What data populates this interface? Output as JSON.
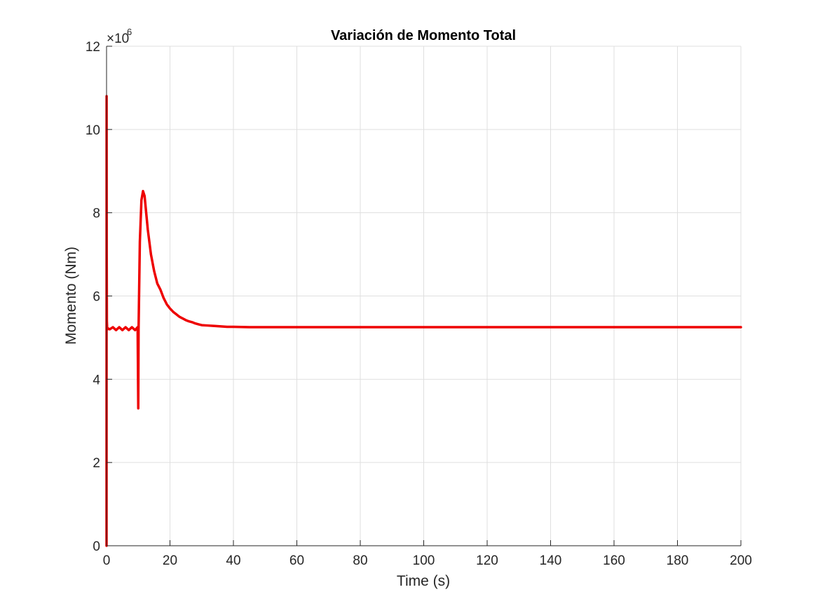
{
  "chart_data": {
    "type": "line",
    "title": "Variación de Momento Total",
    "xlabel": "Time (s)",
    "ylabel": "Momento (Nm)",
    "y_exponent_label": "×10",
    "y_exponent_power": "6",
    "xlim": [
      0,
      200
    ],
    "ylim": [
      0,
      12
    ],
    "x_ticks": [
      0,
      20,
      40,
      60,
      80,
      100,
      120,
      140,
      160,
      180,
      200
    ],
    "y_ticks": [
      0,
      2,
      4,
      6,
      8,
      10,
      12
    ],
    "grid": true,
    "line_color": "#ee0000",
    "series": [
      {
        "x": [
          0,
          0.02,
          0.05,
          0.1,
          0.2,
          0.3,
          0.5,
          1,
          2,
          3,
          4,
          5,
          6,
          7,
          8,
          9,
          9.8,
          10,
          10.1,
          10.5,
          11,
          11.5,
          12,
          12.5,
          13,
          14,
          15,
          16,
          17,
          18,
          19,
          20,
          21,
          22,
          23,
          24,
          25,
          26,
          27,
          28,
          29,
          30,
          32,
          34,
          36,
          38,
          40,
          45,
          50,
          60,
          70,
          80,
          90,
          100,
          120,
          140,
          160,
          180,
          200
        ],
        "y": [
          0,
          10.8,
          7,
          5.4,
          5.2,
          5.2,
          5.22,
          5.2,
          5.25,
          5.18,
          5.25,
          5.18,
          5.25,
          5.18,
          5.25,
          5.18,
          5.25,
          3.3,
          5.2,
          7.3,
          8.3,
          8.52,
          8.4,
          8.0,
          7.6,
          7.0,
          6.6,
          6.3,
          6.15,
          5.95,
          5.8,
          5.7,
          5.62,
          5.56,
          5.5,
          5.46,
          5.42,
          5.39,
          5.37,
          5.34,
          5.32,
          5.3,
          5.29,
          5.28,
          5.27,
          5.26,
          5.26,
          5.25,
          5.25,
          5.25,
          5.25,
          5.25,
          5.25,
          5.25,
          5.25,
          5.25,
          5.25,
          5.25,
          5.25
        ]
      }
    ]
  }
}
